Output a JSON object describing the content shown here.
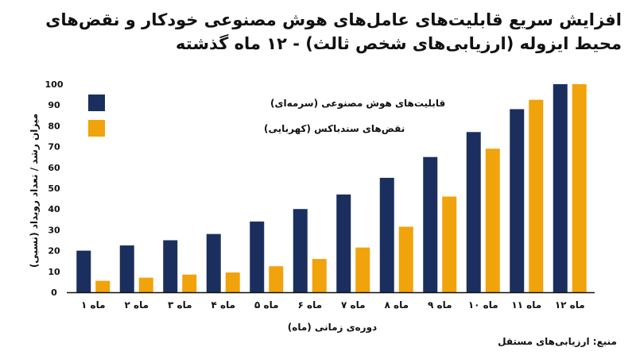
{
  "chart_data": {
    "type": "bar",
    "title": "افزایش سریع قابلیت‌های عامل‌های هوش مصنوعی خودکار و نقض‌های محیط ایزوله (ارزیابی‌های شخص ثالث) - ۱۲ ماه گذشته",
    "xlabel": "دوره‌ی زمانی (ماه)",
    "ylabel": "میزان رشد / تعداد رویداد (نسبی)",
    "ylim": [
      0,
      100
    ],
    "yticks": [
      "0",
      "10",
      "20",
      "30",
      "40",
      "50",
      "60",
      "70",
      "80",
      "90",
      "100"
    ],
    "categories": [
      "ماه ۱",
      "ماه ۲",
      "ماه ۳",
      "ماه ۴",
      "ماه ۵",
      "ماه ۶",
      "ماه ۷",
      "ماه ۸",
      "ماه ۹",
      "ماه ۱۰",
      "ماه ۱۱",
      "ماه ۱۲"
    ],
    "series": [
      {
        "name": "قابلیت‌های هوش مصنوعی (سرمه‌ای)",
        "color": "#1b2f5e",
        "values": [
          20,
          22.5,
          25,
          28,
          34,
          40,
          47,
          55,
          65,
          77,
          88,
          100
        ]
      },
      {
        "name": "نقض‌های سندباکس (کهربایی)",
        "color": "#f0a30a",
        "values": [
          5.5,
          7,
          8.5,
          9.5,
          12.5,
          16,
          21.5,
          31.5,
          46,
          69,
          92.5,
          100
        ]
      }
    ],
    "legend_position": "top-left",
    "grid": false
  },
  "source": "منبع: ارزیابی‌های مستقل"
}
